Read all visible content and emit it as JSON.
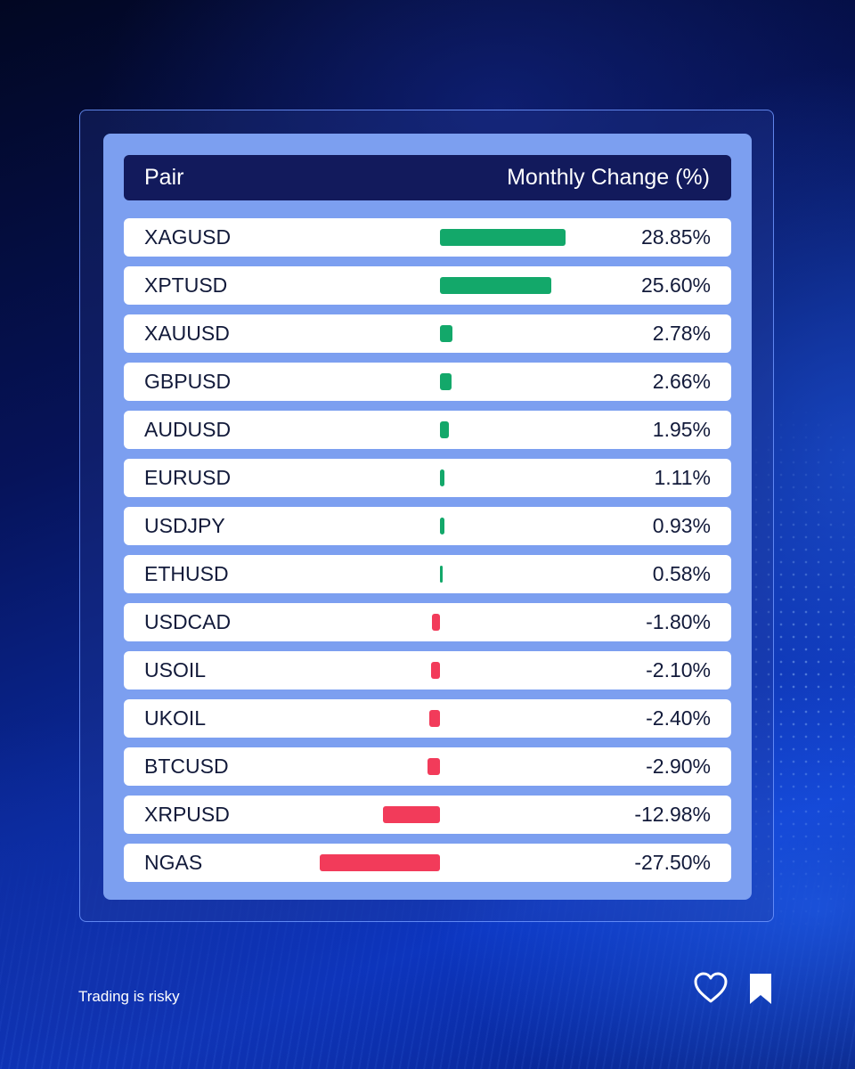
{
  "header": {
    "pair_label": "Pair",
    "change_label": "Monthly Change (%)"
  },
  "footer": {
    "disclaimer": "Trading is risky",
    "icons": [
      "heart-icon",
      "bookmark-icon"
    ]
  },
  "colors": {
    "positive": "#13a86a",
    "negative": "#f23b5a",
    "header_bg": "#121a5c",
    "card_bg": "#7c9ff0"
  },
  "chart_data": {
    "type": "bar",
    "orientation": "horizontal",
    "title": "",
    "xlabel": "",
    "ylabel": "",
    "categories": [
      "XAGUSD",
      "XPTUSD",
      "XAUUSD",
      "GBPUSD",
      "AUDUSD",
      "EURUSD",
      "USDJPY",
      "ETHUSD",
      "USDCAD",
      "USOIL",
      "UKOIL",
      "BTCUSD",
      "XRPUSD",
      "NGAS"
    ],
    "values": [
      28.85,
      25.6,
      2.78,
      2.66,
      1.95,
      1.11,
      0.93,
      0.58,
      -1.8,
      -2.1,
      -2.4,
      -2.9,
      -12.98,
      -27.5
    ],
    "labels": [
      "28.85%",
      "25.60%",
      "2.78%",
      "2.66%",
      "1.95%",
      "1.11%",
      "0.93%",
      "0.58%",
      "-1.80%",
      "-2.10%",
      "-2.40%",
      "-2.90%",
      "-12.98%",
      "-27.50%"
    ]
  }
}
